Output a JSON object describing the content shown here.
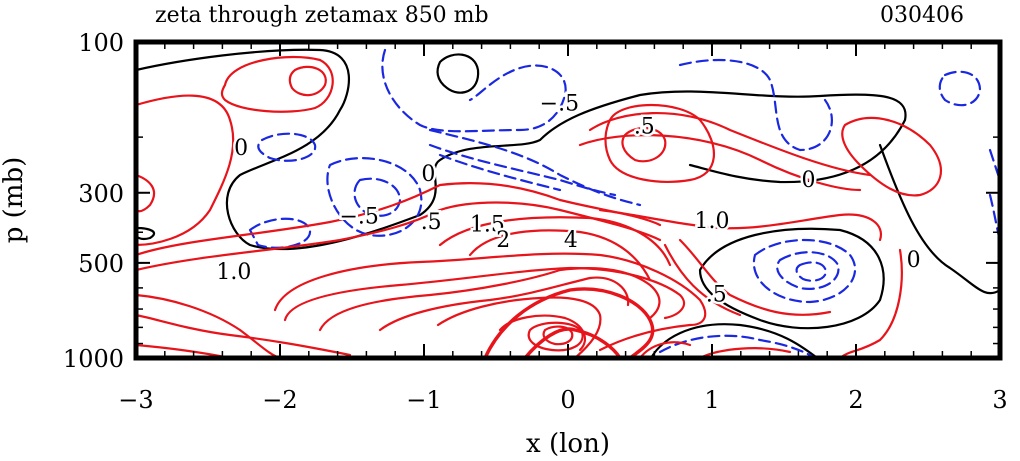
{
  "chart_data": {
    "type": "contour",
    "title": "zeta through zetamax 850 mb",
    "date_label": "030406",
    "xlabel": "x (lon)",
    "ylabel": "p (mb)",
    "xlim": [
      -3,
      3
    ],
    "ylim": [
      1000,
      100
    ],
    "y_scale": "log",
    "x_ticks": [
      -3,
      -2,
      -1,
      0,
      1,
      2,
      3
    ],
    "x_tick_labels": [
      "−3",
      "−2",
      "−1",
      "0",
      "1",
      "2",
      "3"
    ],
    "y_ticks": [
      100,
      300,
      500,
      1000
    ],
    "y_tick_labels": [
      "100",
      "300",
      "500",
      "1000"
    ],
    "contour_labels": [
      {
        "text": ".5",
        "x": 0.53,
        "y": 195
      },
      {
        "text": "−.5",
        "x": -0.06,
        "y": 165
      },
      {
        "text": "0",
        "x": -2.27,
        "y": 228
      },
      {
        "text": "0",
        "x": -0.97,
        "y": 275
      },
      {
        "text": "0",
        "x": 1.67,
        "y": 288
      },
      {
        "text": "−.5",
        "x": -1.45,
        "y": 375
      },
      {
        "text": ".5",
        "x": -0.95,
        "y": 390
      },
      {
        "text": "1.5",
        "x": -0.56,
        "y": 398
      },
      {
        "text": "2",
        "x": -0.45,
        "y": 445
      },
      {
        "text": "4",
        "x": 0.02,
        "y": 445
      },
      {
        "text": "1.0",
        "x": 1.0,
        "y": 388
      },
      {
        "text": "1.0",
        "x": -2.32,
        "y": 562
      },
      {
        "text": "0",
        "x": 2.4,
        "y": 515
      },
      {
        "text": ".5",
        "x": 1.03,
        "y": 662
      }
    ],
    "contour_interval": 0.5,
    "colors": {
      "positive": "#e8141b",
      "zero": "#000000",
      "negative": "#1a28e0"
    }
  }
}
